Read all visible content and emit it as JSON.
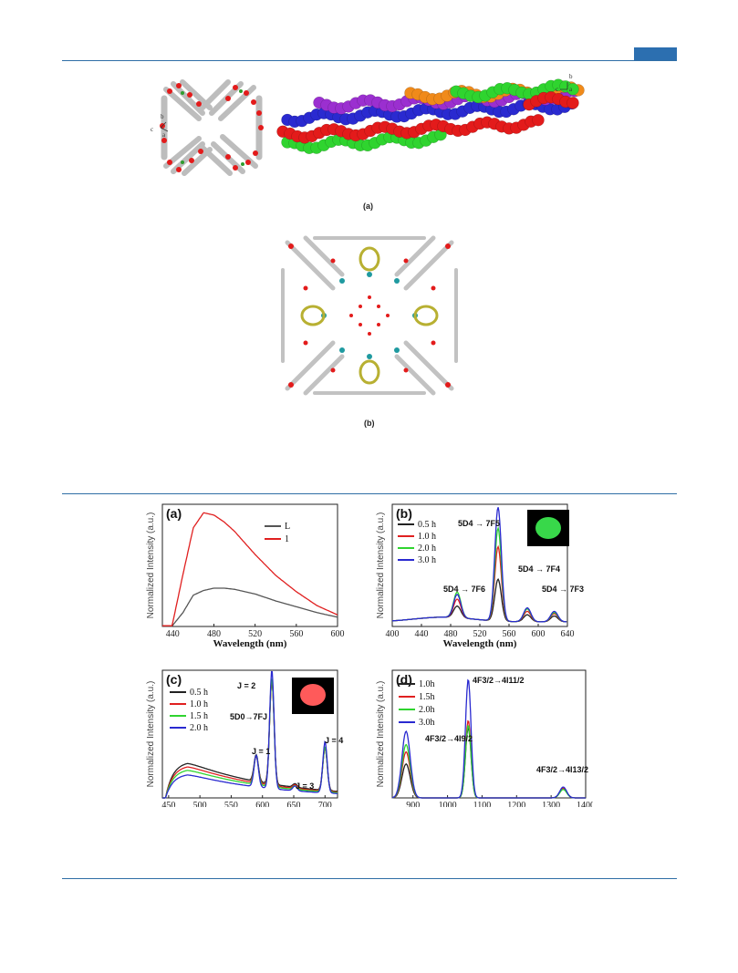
{
  "figure_top": {
    "caption_a": "(a)",
    "caption_b": "(b)",
    "axes_a_left": {
      "b": "b",
      "c": "c",
      "a": "a"
    },
    "axes_a_right": {
      "b": "b",
      "c": "c",
      "a": "a"
    }
  },
  "colors": {
    "rule": "#2f6ea6",
    "black": "#222222",
    "red": "#e02020",
    "green": "#2fd42f",
    "blue": "#2a2ad0",
    "gray": "#555555"
  },
  "chart_data": [
    {
      "panel": "(a)",
      "type": "line",
      "xlabel": "Wavelength (nm)",
      "ylabel": "Normalized Intensity (a.u.)",
      "xlim": [
        430,
        600
      ],
      "xticks": [
        440,
        480,
        520,
        560,
        600
      ],
      "legend": [
        "L",
        "1"
      ],
      "series": [
        {
          "name": "L",
          "color": "#555555",
          "x": [
            440,
            450,
            460,
            470,
            480,
            490,
            500,
            520,
            540,
            560,
            580,
            600
          ],
          "y": [
            0.01,
            0.12,
            0.27,
            0.31,
            0.33,
            0.33,
            0.32,
            0.28,
            0.22,
            0.17,
            0.12,
            0.08
          ]
        },
        {
          "name": "1",
          "color": "#e02020",
          "x": [
            440,
            450,
            460,
            470,
            480,
            490,
            500,
            520,
            540,
            560,
            580,
            600
          ],
          "y": [
            0.03,
            0.45,
            0.85,
            0.98,
            0.96,
            0.9,
            0.82,
            0.62,
            0.44,
            0.3,
            0.18,
            0.1
          ]
        }
      ]
    },
    {
      "panel": "(b)",
      "type": "line",
      "xlabel": "Wavelength (nm)",
      "ylabel": "Normalized Intensity (a.u.)",
      "xlim": [
        400,
        640
      ],
      "xticks": [
        400,
        440,
        480,
        520,
        560,
        600,
        640
      ],
      "legend": [
        "0.5 h",
        "1.0 h",
        "2.0 h",
        "3.0 h"
      ],
      "annotations": [
        "5D4 → 7F5",
        "5D4 → 7F6",
        "5D4 → 7F4",
        "5D4 → 7F3"
      ],
      "series": [
        {
          "name": "0.5 h",
          "color": "#222222",
          "peaks": [
            0.1,
            0.36,
            0.06,
            0.05
          ]
        },
        {
          "name": "1.0 h",
          "color": "#e02020",
          "peaks": [
            0.16,
            0.64,
            0.09,
            0.07
          ]
        },
        {
          "name": "2.0 h",
          "color": "#2fd42f",
          "peaks": [
            0.22,
            0.8,
            0.11,
            0.08
          ]
        },
        {
          "name": "3.0 h",
          "color": "#2a2ad0",
          "peaks": [
            0.2,
            0.98,
            0.12,
            0.09
          ]
        }
      ],
      "peak_positions": [
        489,
        545,
        585,
        622
      ]
    },
    {
      "panel": "(c)",
      "type": "line",
      "xlabel": "Wavelength (nm)",
      "ylabel": "Normalized Intensity (a.u.)",
      "xlim": [
        440,
        720
      ],
      "xticks": [
        450,
        500,
        550,
        600,
        650,
        700
      ],
      "legend": [
        "0.5 h",
        "1.0 h",
        "1.5 h",
        "2.0 h"
      ],
      "annotations": [
        "J = 2",
        "5D0→7FJ",
        "J = 1",
        "J = 3",
        "J = 4"
      ],
      "series": [
        {
          "name": "0.5 h",
          "color": "#222222",
          "broad": 0.3,
          "peaks": [
            0.22,
            0.86,
            0.03,
            0.35
          ]
        },
        {
          "name": "1.0 h",
          "color": "#e02020",
          "broad": 0.27,
          "peaks": [
            0.22,
            0.88,
            0.03,
            0.36
          ]
        },
        {
          "name": "1.5 h",
          "color": "#2fd42f",
          "broad": 0.24,
          "peaks": [
            0.24,
            0.9,
            0.03,
            0.37
          ]
        },
        {
          "name": "2.0 h",
          "color": "#2a2ad0",
          "broad": 0.2,
          "peaks": [
            0.26,
            0.98,
            0.04,
            0.42
          ]
        }
      ],
      "peak_positions": [
        590,
        615,
        652,
        700
      ]
    },
    {
      "panel": "(d)",
      "type": "line",
      "xlabel": "Wavelength (nm)",
      "ylabel": "Normalized Intensity (a.u.)",
      "xlim": [
        840,
        1400
      ],
      "xticks": [
        900,
        1000,
        1100,
        1200,
        1300,
        1400
      ],
      "legend": [
        "1.0h",
        "1.5h",
        "2.0h",
        "3.0h"
      ],
      "annotations": [
        "4F3/2→4I11/2",
        "4F3/2→4I9/2",
        "4F3/2→4I13/2"
      ],
      "series": [
        {
          "name": "1.0h",
          "color": "#222222",
          "peaks": [
            0.28,
            0.58,
            0.08
          ]
        },
        {
          "name": "1.5h",
          "color": "#e02020",
          "peaks": [
            0.38,
            0.64,
            0.08
          ]
        },
        {
          "name": "2.0h",
          "color": "#2fd42f",
          "peaks": [
            0.44,
            0.6,
            0.07
          ]
        },
        {
          "name": "3.0h",
          "color": "#2a2ad0",
          "peaks": [
            0.55,
            0.98,
            0.09
          ]
        }
      ],
      "peak_positions": [
        880,
        1060,
        1335
      ]
    }
  ]
}
